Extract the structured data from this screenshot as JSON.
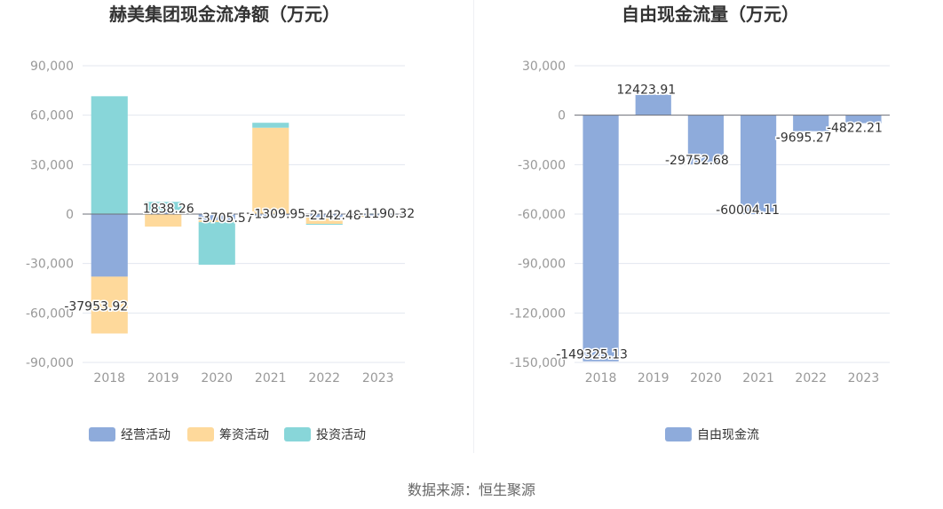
{
  "source_label": "数据来源：恒生聚源",
  "colors": {
    "operating": "#8eabdb",
    "financing": "#fed99b",
    "investing": "#88d6d9",
    "free_cash_flow": "#8eabdb",
    "grid": "#e3e7ef",
    "tick": "#999999",
    "title": "#333333"
  },
  "chart_data": [
    {
      "type": "bar",
      "stacked": true,
      "title": "赫美集团现金流净额（万元）",
      "categories": [
        "2018",
        "2019",
        "2020",
        "2021",
        "2022",
        "2023"
      ],
      "yticks": [
        "90,000",
        "60,000",
        "30,000",
        "0",
        "-30,000",
        "-60,000",
        "-90,000"
      ],
      "ylim": [
        -90000,
        90000
      ],
      "grid": true,
      "legend_position": "bottom",
      "series": [
        {
          "name": "经营活动",
          "values": [
            -37953.92,
            1838.26,
            -3705.57,
            -1309.95,
            -2142.48,
            -1190.32
          ]
        },
        {
          "name": "筹资活动",
          "values": [
            -34500,
            -7600,
            -1200,
            52400,
            -3800,
            -450
          ]
        },
        {
          "name": "投资活动",
          "values": [
            71500,
            5600,
            -25800,
            3000,
            -300,
            350
          ]
        }
      ],
      "data_labels": [
        "-37953.92",
        "1838.26",
        "-3705.57",
        "-1309.95",
        "-2142.48",
        "-1190.32"
      ]
    },
    {
      "type": "bar",
      "title": "自由现金流量（万元）",
      "categories": [
        "2018",
        "2019",
        "2020",
        "2021",
        "2022",
        "2023"
      ],
      "yticks": [
        "30,000",
        "0",
        "-30,000",
        "-60,000",
        "-90,000",
        "-120,000",
        "-150,000"
      ],
      "ylim": [
        -150000,
        30000
      ],
      "grid": true,
      "legend_position": "bottom",
      "series": [
        {
          "name": "自由现金流",
          "values": [
            -149325.13,
            12423.91,
            -29752.68,
            -60004.11,
            -9695.27,
            -4822.21
          ]
        }
      ],
      "data_labels": [
        "-149325.13",
        "12423.91",
        "-29752.68",
        "-60004.11",
        "-9695.27",
        "-4822.21"
      ]
    }
  ]
}
